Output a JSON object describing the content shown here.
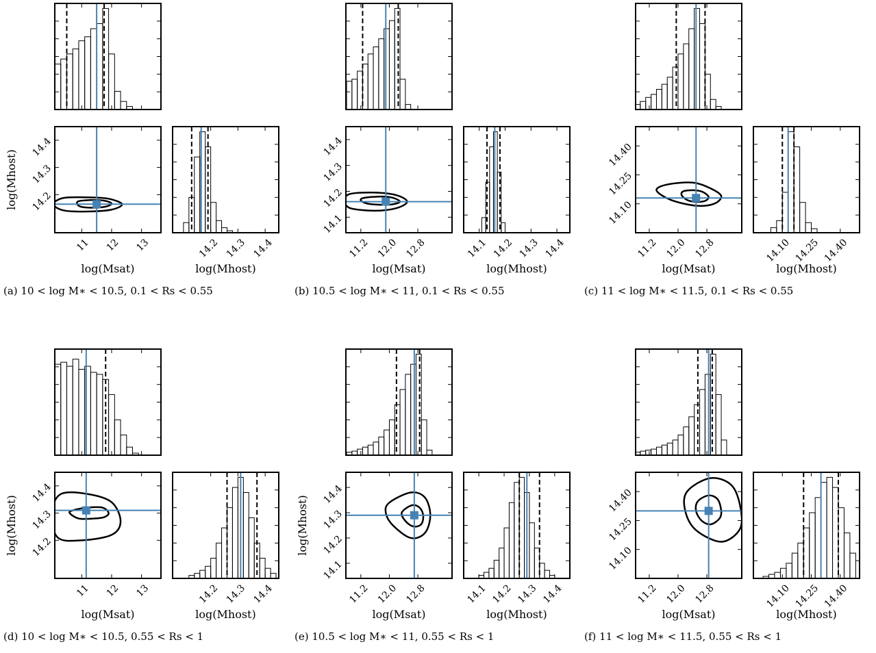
{
  "chart_data": [
    {
      "type": "corner",
      "caption": "(a) 10 < log M∗ < 10.5, 0.1 < Rs < 0.55",
      "x_label": "log(Msat)",
      "y_label": "log(Mhost)",
      "host_label": "log(Mhost)",
      "color": "#4682b4",
      "xlim": [
        10.1,
        13.65
      ],
      "xticks": [
        11,
        12,
        13
      ],
      "ylim": [
        14.06,
        14.45
      ],
      "yticks": [
        14.2,
        14.3,
        14.4
      ],
      "hist_ylim": [
        0,
        1.05
      ],
      "sat_bins": [
        10.1,
        10.3,
        10.5,
        10.7,
        10.9,
        11.1,
        11.3,
        11.5,
        11.7,
        11.9,
        12.1,
        12.3,
        12.5,
        12.7
      ],
      "sat_counts": [
        0.45,
        0.5,
        0.55,
        0.6,
        0.68,
        0.72,
        0.8,
        0.85,
        1.0,
        0.55,
        0.18,
        0.08,
        0.03
      ],
      "host_bins": [
        14.1,
        14.12,
        14.14,
        14.16,
        14.18,
        14.2,
        14.22,
        14.24,
        14.26,
        14.28
      ],
      "host_counts": [
        0.1,
        0.35,
        0.75,
        1.0,
        0.85,
        0.3,
        0.12,
        0.05,
        0.02
      ],
      "best": [
        11.5,
        14.165
      ],
      "sat_interval": [
        10.5,
        11.75
      ],
      "host_interval": [
        14.13,
        14.19
      ],
      "contours": [
        {
          "x": [
            12.35,
            11.9,
            11.2,
            10.4,
            10.05,
            10.4,
            11.2,
            12.0
          ],
          "y": [
            14.165,
            14.185,
            14.19,
            14.188,
            14.165,
            14.142,
            14.138,
            14.145
          ]
        },
        {
          "x": [
            12.0,
            11.75,
            11.3,
            10.9,
            10.85,
            11.0,
            11.4,
            11.8
          ],
          "y": [
            14.167,
            14.178,
            14.18,
            14.176,
            14.165,
            14.155,
            14.152,
            14.156
          ]
        }
      ]
    },
    {
      "type": "corner",
      "caption": "(b) 10.5 < log M∗ < 11, 0.1 < Rs < 0.55",
      "x_label": "log(Msat)",
      "host_label": "log(Mhost)",
      "color": "#4682b4",
      "xlim": [
        10.78,
        13.76
      ],
      "xticks": [
        11.2,
        {
          "value": 12,
          "label": "12.0"
        },
        12.8
      ],
      "ylim": [
        14.04,
        14.45
      ],
      "yticks": [
        14.1,
        14.2,
        14.3,
        14.4
      ],
      "hist_ylim": [
        0,
        1.05
      ],
      "sat_bins": [
        10.8,
        10.95,
        11.1,
        11.25,
        11.4,
        11.55,
        11.7,
        11.85,
        12.0,
        12.15,
        12.3,
        12.45,
        12.6
      ],
      "sat_counts": [
        0.28,
        0.3,
        0.38,
        0.45,
        0.55,
        0.62,
        0.7,
        0.8,
        0.88,
        1.0,
        0.3,
        0.05
      ],
      "host_bins": [
        14.11,
        14.125,
        14.14,
        14.155,
        14.17,
        14.185,
        14.2
      ],
      "host_counts": [
        0.15,
        0.5,
        0.85,
        1.0,
        0.6,
        0.1
      ],
      "best": [
        11.9,
        14.16
      ],
      "sat_interval": [
        11.25,
        12.25
      ],
      "host_interval": [
        14.13,
        14.18
      ],
      "contours": [
        {
          "x": [
            12.5,
            12.2,
            11.6,
            10.9,
            10.75,
            10.9,
            11.6,
            12.2
          ],
          "y": [
            14.16,
            14.185,
            14.195,
            14.19,
            14.165,
            14.135,
            14.125,
            14.135
          ]
        },
        {
          "x": [
            12.3,
            12.1,
            11.8,
            11.3,
            11.2,
            11.4,
            11.8,
            12.1
          ],
          "y": [
            14.16,
            14.175,
            14.18,
            14.175,
            14.165,
            14.152,
            14.148,
            14.15
          ]
        }
      ]
    },
    {
      "type": "corner",
      "caption": "(c) 11 < log M∗ < 11.5, 0.1 < Rs < 0.55",
      "x_label": "log(Msat)",
      "host_label": "log(Mhost)",
      "color": "#4682b4",
      "xlim": [
        10.82,
        13.77
      ],
      "xticks": [
        11.2,
        {
          "value": 12,
          "label": "12.0"
        },
        12.8
      ],
      "ylim": [
        13.95,
        14.5
      ],
      "yticks": [
        {
          "value": 14.1,
          "label": "14.10"
        },
        14.25,
        {
          "value": 14.4,
          "label": "14.40"
        }
      ],
      "hist_ylim": [
        0,
        1.05
      ],
      "sat_bins": [
        10.8,
        10.95,
        11.1,
        11.25,
        11.4,
        11.55,
        11.7,
        11.85,
        12.0,
        12.15,
        12.3,
        12.45,
        12.6,
        12.75,
        12.9,
        13.05,
        13.2
      ],
      "sat_counts": [
        0.05,
        0.08,
        0.12,
        0.15,
        0.2,
        0.25,
        0.32,
        0.42,
        0.55,
        0.65,
        0.8,
        1.0,
        0.85,
        0.35,
        0.1,
        0.03
      ],
      "host_bins": [
        14.04,
        14.07,
        14.1,
        14.13,
        14.16,
        14.19,
        14.22,
        14.25,
        14.28
      ],
      "host_counts": [
        0.05,
        0.12,
        0.4,
        1.0,
        0.85,
        0.3,
        0.1,
        0.04
      ],
      "best": [
        12.5,
        14.13
      ],
      "sat_interval": [
        11.95,
        12.75
      ],
      "host_interval": [
        14.1,
        14.16
      ],
      "contours": [
        {
          "x": [
            13.2,
            12.9,
            12.4,
            11.7,
            11.4,
            11.8,
            12.5,
            13.0
          ],
          "y": [
            14.14,
            14.18,
            14.21,
            14.2,
            14.17,
            14.12,
            14.09,
            14.1
          ]
        },
        {
          "x": [
            12.85,
            12.7,
            12.45,
            12.15,
            12.1,
            12.25,
            12.5,
            12.75
          ],
          "y": [
            14.135,
            14.16,
            14.17,
            14.165,
            14.145,
            14.12,
            14.11,
            14.115
          ]
        }
      ]
    },
    {
      "type": "corner",
      "caption": "(d) 10 < log M∗ < 10.5, 0.55 < Rs < 1",
      "x_label": "log(Msat)",
      "y_label": "log(Mhost)",
      "host_label": "log(Mhost)",
      "color": "#4682b4",
      "xlim": [
        10.1,
        13.65
      ],
      "xticks": [
        11,
        12,
        13
      ],
      "ylim": [
        14.06,
        14.45
      ],
      "yticks": [
        14.2,
        14.3,
        14.4
      ],
      "hist_ylim": [
        0,
        1.05
      ],
      "sat_bins": [
        10.1,
        10.3,
        10.5,
        10.7,
        10.9,
        11.1,
        11.3,
        11.5,
        11.7,
        11.9,
        12.1,
        12.3,
        12.5,
        12.7,
        12.9
      ],
      "sat_counts": [
        0.9,
        0.92,
        0.88,
        0.95,
        0.85,
        0.88,
        0.82,
        0.8,
        0.75,
        0.6,
        0.35,
        0.2,
        0.08,
        0.02
      ],
      "host_bins": [
        14.12,
        14.14,
        14.16,
        14.18,
        14.2,
        14.22,
        14.24,
        14.26,
        14.28,
        14.3,
        14.32,
        14.34,
        14.36,
        14.38,
        14.4,
        14.42,
        14.44
      ],
      "host_counts": [
        0.03,
        0.05,
        0.08,
        0.12,
        0.2,
        0.35,
        0.5,
        0.7,
        0.9,
        1.0,
        0.85,
        0.6,
        0.35,
        0.2,
        0.1,
        0.05
      ],
      "best": [
        11.15,
        14.31
      ],
      "sat_interval": [
        11.8
      ],
      "host_interval": [
        14.26,
        14.37
      ],
      "contours": [
        {
          "x": [
            12.3,
            12.0,
            11.2,
            10.3,
            10.0,
            10.2,
            11.0,
            12.0
          ],
          "y": [
            14.27,
            14.34,
            14.37,
            14.37,
            14.3,
            14.21,
            14.2,
            14.22
          ]
        },
        {
          "x": [
            11.9,
            11.7,
            11.2,
            10.7,
            10.6,
            10.9,
            11.4,
            11.75
          ],
          "y": [
            14.3,
            14.32,
            14.32,
            14.31,
            14.3,
            14.28,
            14.28,
            14.285
          ]
        }
      ]
    },
    {
      "type": "corner",
      "caption": "(e) 10.5 < log M∗ < 11, 0.55 < Rs < 1",
      "x_label": "log(Msat)",
      "y_label": "log(Mhost)",
      "host_label": "log(Mhost)",
      "color": "#4682b4",
      "xlim": [
        10.78,
        13.76
      ],
      "xticks": [
        11.2,
        {
          "value": 12,
          "label": "12.0"
        },
        12.8
      ],
      "ylim": [
        14.04,
        14.46
      ],
      "yticks": [
        14.1,
        14.2,
        14.3,
        14.4
      ],
      "hist_ylim": [
        0,
        1.05
      ],
      "sat_bins": [
        10.8,
        10.95,
        11.1,
        11.25,
        11.4,
        11.55,
        11.7,
        11.85,
        12.0,
        12.15,
        12.3,
        12.45,
        12.6,
        12.75,
        12.9,
        13.05,
        13.2
      ],
      "sat_counts": [
        0.03,
        0.04,
        0.06,
        0.08,
        0.1,
        0.13,
        0.18,
        0.25,
        0.35,
        0.5,
        0.65,
        0.8,
        0.9,
        1.0,
        0.35,
        0.05
      ],
      "host_bins": [
        14.1,
        14.12,
        14.14,
        14.16,
        14.18,
        14.2,
        14.22,
        14.24,
        14.26,
        14.28,
        14.3,
        14.32,
        14.34,
        14.36,
        14.38,
        14.4
      ],
      "host_counts": [
        0.03,
        0.06,
        0.1,
        0.18,
        0.3,
        0.5,
        0.75,
        0.95,
        1.0,
        0.85,
        0.55,
        0.3,
        0.15,
        0.08,
        0.03
      ],
      "best": [
        12.7,
        14.29
      ],
      "sat_interval": [
        12.2,
        12.85
      ],
      "host_interval": [
        14.26,
        14.34
      ],
      "contours": [
        {
          "x": [
            13.15,
            13.0,
            12.6,
            12.0,
            11.9,
            12.1,
            12.6,
            13.0
          ],
          "y": [
            14.29,
            14.36,
            14.38,
            14.34,
            14.3,
            14.25,
            14.2,
            14.22
          ]
        },
        {
          "x": [
            12.95,
            12.85,
            12.65,
            12.4,
            12.35,
            12.5,
            12.7,
            12.9
          ],
          "y": [
            14.29,
            14.32,
            14.33,
            14.31,
            14.29,
            14.26,
            14.245,
            14.255
          ]
        }
      ]
    },
    {
      "type": "corner",
      "caption": "(f) 11 < log M∗ < 11.5, 0.55 < Rs < 1",
      "x_label": "log(Msat)",
      "host_label": "log(Mhost)",
      "color": "#4682b4",
      "xlim": [
        10.82,
        13.77
      ],
      "xticks": [
        11.2,
        {
          "value": 12,
          "label": "12.0"
        },
        12.8
      ],
      "ylim": [
        13.95,
        14.5
      ],
      "yticks": [
        {
          "value": 14.1,
          "label": "14.10"
        },
        14.25,
        {
          "value": 14.4,
          "label": "14.40"
        }
      ],
      "hist_ylim": [
        0,
        1.05
      ],
      "sat_bins": [
        10.8,
        10.95,
        11.1,
        11.25,
        11.4,
        11.55,
        11.7,
        11.85,
        12.0,
        12.15,
        12.3,
        12.45,
        12.6,
        12.75,
        12.9,
        13.05,
        13.2,
        13.35
      ],
      "sat_counts": [
        0.03,
        0.04,
        0.05,
        0.06,
        0.08,
        0.1,
        0.12,
        0.15,
        0.2,
        0.28,
        0.38,
        0.5,
        0.65,
        0.8,
        1.0,
        0.6,
        0.15
      ],
      "host_bins": [
        14.0,
        14.03,
        14.06,
        14.09,
        14.12,
        14.15,
        14.18,
        14.21,
        14.24,
        14.27,
        14.3,
        14.33,
        14.36,
        14.39,
        14.42,
        14.45,
        14.48
      ],
      "host_counts": [
        0.02,
        0.04,
        0.06,
        0.1,
        0.15,
        0.25,
        0.35,
        0.5,
        0.65,
        0.8,
        0.95,
        1.0,
        0.9,
        0.7,
        0.45,
        0.25
      ],
      "best": [
        12.85,
        14.3
      ],
      "sat_interval": [
        12.55,
        12.95
      ],
      "host_interval": [
        14.21,
        14.39
      ],
      "contours": [
        {
          "x": [
            13.75,
            13.5,
            12.9,
            12.25,
            12.2,
            12.5,
            13.2,
            13.7
          ],
          "y": [
            14.3,
            14.43,
            14.47,
            14.4,
            14.3,
            14.2,
            14.14,
            14.2
          ]
        },
        {
          "x": [
            13.2,
            13.1,
            12.85,
            12.55,
            12.5,
            12.65,
            12.9,
            13.15
          ],
          "y": [
            14.3,
            14.36,
            14.38,
            14.35,
            14.3,
            14.25,
            14.23,
            14.26
          ]
        }
      ]
    }
  ]
}
